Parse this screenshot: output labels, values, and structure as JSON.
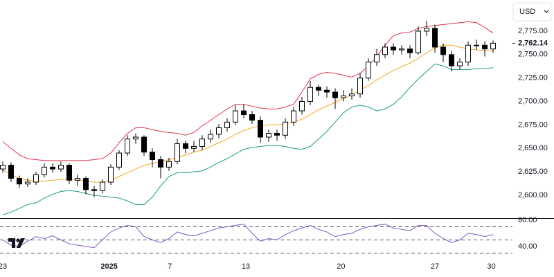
{
  "chart_data": {
    "type": "candlestick",
    "currency": "USD",
    "up_color": "#ffffff",
    "down_color": "#000000",
    "edge_color": "#000000",
    "open": [
      2628,
      2632,
      2618,
      2612,
      2614,
      2622,
      2630,
      2628,
      2632,
      2616,
      2618,
      2606,
      2605,
      2614,
      2630,
      2645,
      2660,
      2662,
      2646,
      2638,
      2630,
      2636,
      2655,
      2650,
      2652,
      2660,
      2665,
      2672,
      2678,
      2690,
      2686,
      2680,
      2662,
      2666,
      2664,
      2678,
      2690,
      2700,
      2715,
      2712,
      2710,
      2704,
      2706,
      2708,
      2725,
      2742,
      2750,
      2758,
      2755,
      2756,
      2752,
      2775,
      2778,
      2758,
      2750,
      2738,
      2742,
      2760,
      2760,
      2756
    ],
    "high": [
      2636,
      2635,
      2621,
      2618,
      2625,
      2634,
      2634,
      2636,
      2634,
      2622,
      2620,
      2610,
      2617,
      2633,
      2648,
      2664,
      2666,
      2664,
      2650,
      2642,
      2640,
      2660,
      2658,
      2658,
      2664,
      2670,
      2676,
      2682,
      2696,
      2697,
      2690,
      2684,
      2670,
      2670,
      2682,
      2694,
      2705,
      2722,
      2718,
      2716,
      2714,
      2712,
      2714,
      2730,
      2746,
      2756,
      2762,
      2762,
      2760,
      2760,
      2780,
      2786,
      2782,
      2762,
      2754,
      2746,
      2764,
      2766,
      2764,
      2765
    ],
    "low": [
      2624,
      2614,
      2608,
      2609,
      2611,
      2619,
      2624,
      2625,
      2612,
      2610,
      2601,
      2598,
      2602,
      2611,
      2627,
      2642,
      2655,
      2642,
      2630,
      2618,
      2626,
      2633,
      2645,
      2646,
      2648,
      2656,
      2661,
      2668,
      2675,
      2682,
      2676,
      2656,
      2657,
      2658,
      2660,
      2674,
      2686,
      2696,
      2706,
      2704,
      2692,
      2700,
      2702,
      2704,
      2722,
      2738,
      2746,
      2750,
      2750,
      2746,
      2750,
      2770,
      2752,
      2742,
      2732,
      2734,
      2738,
      2755,
      2748,
      2752
    ],
    "close": [
      2632,
      2618,
      2612,
      2614,
      2622,
      2630,
      2628,
      2632,
      2616,
      2618,
      2606,
      2605,
      2614,
      2630,
      2645,
      2660,
      2662,
      2646,
      2638,
      2630,
      2636,
      2655,
      2650,
      2652,
      2660,
      2665,
      2672,
      2678,
      2690,
      2686,
      2680,
      2662,
      2666,
      2664,
      2678,
      2690,
      2700,
      2715,
      2712,
      2710,
      2704,
      2706,
      2708,
      2725,
      2742,
      2750,
      2758,
      2755,
      2756,
      2752,
      2775,
      2778,
      2758,
      2750,
      2738,
      2742,
      2760,
      2760,
      2756,
      2762.14
    ],
    "last_price": {
      "value": 2762.14,
      "label": "2,762.14"
    },
    "upper_band": {
      "color": "#e0344f",
      "values": [
        2657,
        2650,
        2643,
        2639,
        2638,
        2637,
        2637,
        2637,
        2637,
        2637,
        2637,
        2638,
        2639,
        2645,
        2656,
        2666,
        2672,
        2672,
        2670,
        2668,
        2667,
        2666,
        2664,
        2667,
        2674,
        2680,
        2686,
        2692,
        2697,
        2697,
        2695,
        2693,
        2692,
        2692,
        2694,
        2697,
        2710,
        2724,
        2729,
        2731,
        2730,
        2728,
        2726,
        2730,
        2738,
        2748,
        2760,
        2770,
        2773,
        2774,
        2778,
        2780,
        2781,
        2782,
        2783,
        2784,
        2785,
        2784,
        2779,
        2773
      ]
    },
    "middle_band": {
      "color": "#f5a623",
      "values": [
        2627,
        2622,
        2618,
        2616,
        2615,
        2615,
        2616,
        2617,
        2617,
        2616,
        2615,
        2614,
        2614,
        2616,
        2620,
        2624,
        2628,
        2632,
        2634,
        2636,
        2638,
        2640,
        2643,
        2646,
        2648,
        2652,
        2656,
        2660,
        2665,
        2669,
        2672,
        2674,
        2675,
        2675,
        2676,
        2678,
        2681,
        2686,
        2691,
        2695,
        2699,
        2703,
        2707,
        2712,
        2717,
        2723,
        2728,
        2733,
        2737,
        2741,
        2746,
        2752,
        2757,
        2760,
        2760,
        2758,
        2756,
        2755,
        2754,
        2754
      ]
    },
    "lower_band": {
      "color": "#1e9b87",
      "values": [
        2579,
        2582,
        2586,
        2590,
        2592,
        2597,
        2601,
        2604,
        2605,
        2604,
        2602,
        2600,
        2599,
        2598,
        2597,
        2594,
        2590,
        2590,
        2598,
        2610,
        2620,
        2624,
        2624,
        2625,
        2626,
        2630,
        2635,
        2639,
        2644,
        2649,
        2651,
        2652,
        2653,
        2653,
        2652,
        2650,
        2649,
        2652,
        2660,
        2668,
        2678,
        2688,
        2694,
        2696,
        2694,
        2690,
        2692,
        2697,
        2705,
        2715,
        2724,
        2732,
        2740,
        2738,
        2734,
        2734,
        2734,
        2735,
        2735,
        2736
      ]
    },
    "ylim": [
      2575.6,
      2808.2
    ],
    "yticks": [
      {
        "value": 2600,
        "label": "2,600.00"
      },
      {
        "value": 2625,
        "label": "2,625.00"
      },
      {
        "value": 2650,
        "label": "2,650.00"
      },
      {
        "value": 2675,
        "label": "2,675.00"
      },
      {
        "value": 2700,
        "label": "2,700.00"
      },
      {
        "value": 2725,
        "label": "2,725.00"
      },
      {
        "value": 2750,
        "label": "2,750.00"
      },
      {
        "value": 2775,
        "label": "2,775.00"
      }
    ],
    "xlim": [
      -0.33,
      61.33
    ],
    "xticks": [
      {
        "value": 0,
        "label": "23"
      },
      {
        "value": 12.8,
        "label": "2025"
      },
      {
        "value": 20.1,
        "label": "7"
      },
      {
        "value": 29.25,
        "label": "13"
      },
      {
        "value": 40.7,
        "label": "20"
      },
      {
        "value": 52,
        "label": "27"
      },
      {
        "value": 58.8,
        "label": "30"
      }
    ],
    "rsi": {
      "color": "#7e57c2",
      "values": [
        50,
        42,
        40,
        48,
        55,
        52,
        56,
        50,
        44,
        42,
        40,
        38,
        50,
        62,
        68,
        72,
        70,
        55,
        50,
        46,
        52,
        62,
        58,
        56,
        60,
        64,
        68,
        70,
        72,
        74,
        60,
        48,
        52,
        50,
        58,
        64,
        68,
        72,
        66,
        62,
        55,
        58,
        60,
        66,
        70,
        72,
        74,
        68,
        66,
        64,
        72,
        72,
        60,
        52,
        46,
        50,
        60,
        58,
        55,
        58
      ],
      "ylim": [
        23,
        82
      ],
      "levels": [
        70,
        50,
        30
      ],
      "yticks": [
        {
          "value": 80,
          "label": "80.00"
        },
        {
          "value": 40,
          "label": "40.00"
        }
      ]
    }
  }
}
